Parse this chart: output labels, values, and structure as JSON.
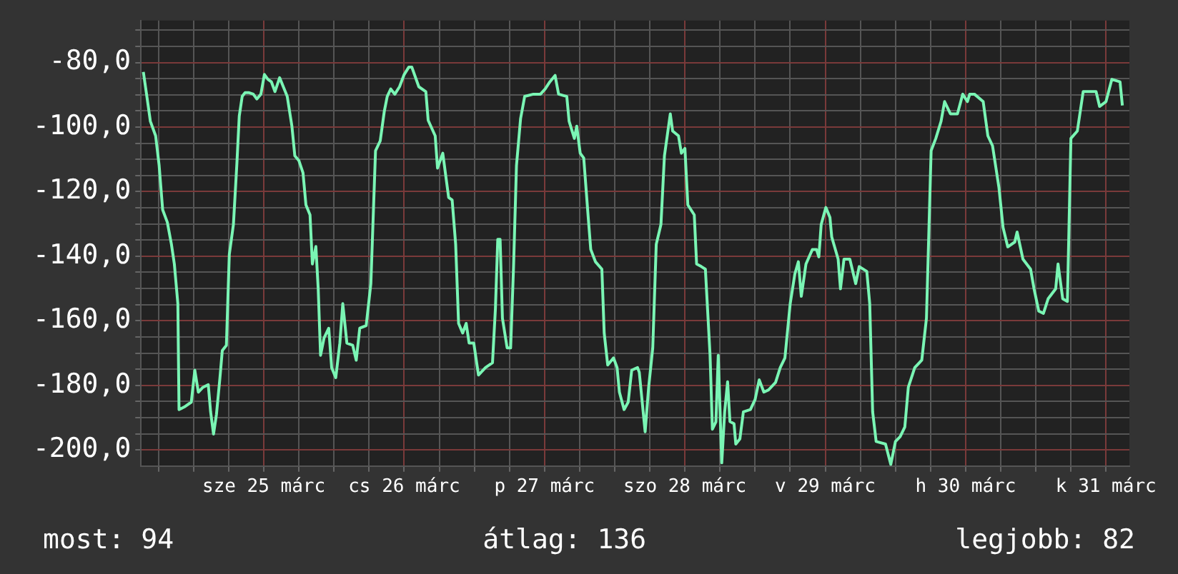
{
  "chart_data": {
    "type": "line",
    "x": [
      "--03-24T15:24",
      "--03-24T16:00",
      "--03-24T16:36",
      "--03-24T17:30",
      "--03-24T18:06",
      "--03-24T18:42",
      "--03-24T19:30",
      "--03-24T20:12",
      "--03-24T20:42",
      "--03-24T21:18",
      "--03-24T21:30",
      "--03-24T22:24",
      "--03-24T23:36",
      "--03-25T00:12",
      "--03-25T00:48",
      "--03-25T01:36",
      "--03-25T02:30",
      "--03-25T02:54",
      "--03-25T03:24",
      "--03-25T03:54",
      "--03-25T04:30",
      "--03-25T04:54",
      "--03-25T05:36",
      "--03-25T06:06",
      "--03-25T06:48",
      "--03-25T07:24",
      "--03-25T07:48",
      "--03-25T08:18",
      "--03-25T08:48",
      "--03-25T09:24",
      "--03-25T10:12",
      "--03-25T10:48",
      "--03-25T11:30",
      "--03-25T12:06",
      "--03-25T12:42",
      "--03-25T13:18",
      "--03-25T13:54",
      "--03-25T14:42",
      "--03-25T16:00",
      "--03-25T16:48",
      "--03-25T17:18",
      "--03-25T18:00",
      "--03-25T18:42",
      "--03-25T19:12",
      "--03-25T19:54",
      "--03-25T20:18",
      "--03-25T20:54",
      "--03-25T21:18",
      "--03-25T21:42",
      "--03-25T22:18",
      "--03-25T23:06",
      "--03-25T23:36",
      "--03-26T00:18",
      "--03-26T01:00",
      "--03-26T01:30",
      "--03-26T02:12",
      "--03-26T03:12",
      "--03-26T03:48",
      "--03-26T04:24",
      "--03-26T05:30",
      "--03-26T06:18",
      "--03-26T07:06",
      "--03-26T07:54",
      "--03-26T08:36",
      "--03-26T09:06",
      "--03-26T09:42",
      "--03-26T10:24",
      "--03-26T11:12",
      "--03-26T12:00",
      "--03-26T12:48",
      "--03-26T13:18",
      "--03-26T14:30",
      "--03-26T15:42",
      "--03-26T16:06",
      "--03-26T17:18",
      "--03-26T17:42",
      "--03-26T18:36",
      "--03-26T19:36",
      "--03-26T20:12",
      "--03-26T20:48",
      "--03-26T21:18",
      "--03-26T22:00",
      "--03-26T22:36",
      "--03-26T23:06",
      "--03-26T23:54",
      "--03-27T00:42",
      "--03-27T01:54",
      "--03-27T03:06",
      "--03-27T03:36",
      "--03-27T04:00",
      "--03-27T04:24",
      "--03-27T04:48",
      "--03-27T05:36",
      "--03-27T06:12",
      "--03-27T06:42",
      "--03-27T07:12",
      "--03-27T07:54",
      "--03-27T08:36",
      "--03-27T10:06",
      "--03-27T11:18",
      "--03-27T12:06",
      "--03-27T12:54",
      "--03-27T13:48",
      "--03-27T14:24",
      "--03-27T15:48",
      "--03-27T16:12",
      "--03-27T17:06",
      "--03-27T17:30",
      "--03-27T18:06",
      "--03-27T18:42",
      "--03-27T19:30",
      "--03-27T19:54",
      "--03-27T20:42",
      "--03-27T21:48",
      "--03-27T22:12",
      "--03-27T22:48",
      "--03-27T23:48",
      "--03-28T00:24",
      "--03-28T00:48",
      "--03-28T01:36",
      "--03-28T02:18",
      "--03-28T02:54",
      "--03-28T03:54",
      "--03-28T04:12",
      "--03-28T05:12",
      "--03-28T05:48",
      "--03-28T06:30",
      "--03-28T07:06",
      "--03-28T07:54",
      "--03-28T08:30",
      "--03-28T09:30",
      "--03-28T09:54",
      "--03-28T10:54",
      "--03-28T11:24",
      "--03-28T12:00",
      "--03-28T12:30",
      "--03-28T13:36",
      "--03-28T14:00",
      "--03-28T14:48",
      "--03-28T15:30",
      "--03-28T16:18",
      "--03-28T16:42",
      "--03-28T17:18",
      "--03-28T17:42",
      "--03-28T18:18",
      "--03-28T18:48",
      "--03-28T19:18",
      "--03-28T19:42",
      "--03-28T20:24",
      "--03-28T20:42",
      "--03-28T21:24",
      "--03-28T22:00",
      "--03-28T23:12",
      "--03-29T00:00",
      "--03-29T00:42",
      "--03-29T01:30",
      "--03-29T02:18",
      "--03-29T03:30",
      "--03-29T04:18",
      "--03-29T05:06",
      "--03-29T06:00",
      "--03-29T06:48",
      "--03-29T07:24",
      "--03-29T07:54",
      "--03-29T08:42",
      "--03-29T09:48",
      "--03-29T10:30",
      "--03-29T10:54",
      "--03-29T11:18",
      "--03-29T12:06",
      "--03-29T12:48",
      "--03-29T13:06",
      "--03-29T14:12",
      "--03-29T14:36",
      "--03-29T15:12",
      "--03-29T16:12",
      "--03-29T17:12",
      "--03-29T17:48",
      "--03-29T19:06",
      "--03-29T19:36",
      "--03-29T20:06",
      "--03-29T20:42",
      "--03-29T22:18",
      "--03-29T23:12",
      "--03-30T00:00",
      "--03-30T00:48",
      "--03-30T01:36",
      "--03-30T02:12",
      "--03-30T03:18",
      "--03-30T04:30",
      "--03-30T05:18",
      "--03-30T06:06",
      "--03-30T06:54",
      "--03-30T07:48",
      "--03-30T08:24",
      "--03-30T09:24",
      "--03-30T10:36",
      "--03-30T11:30",
      "--03-30T12:18",
      "--03-30T12:42",
      "--03-30T13:30",
      "--03-30T15:00",
      "--03-30T15:48",
      "--03-30T16:36",
      "--03-30T17:42",
      "--03-30T18:24",
      "--03-30T19:12",
      "--03-30T20:24",
      "--03-30T20:48",
      "--03-30T21:48",
      "--03-30T23:06",
      "--03-30T23:42",
      "--03-31T00:30",
      "--03-31T01:18",
      "--03-31T02:06",
      "--03-31T03:24",
      "--03-31T03:48",
      "--03-31T04:36",
      "--03-31T05:24",
      "--03-31T06:00",
      "--03-31T07:06",
      "--03-31T08:06",
      "--03-31T10:18",
      "--03-31T10:54",
      "--03-31T12:00",
      "--03-31T13:00",
      "--03-31T14:24",
      "--03-31T14:48"
    ],
    "series": [
      {
        "color": "#7af5b4",
        "values": [
          -82.9,
          -90.5,
          -98.2,
          -102.7,
          -111.9,
          -125.6,
          -129.5,
          -136.3,
          -142.4,
          -154.7,
          -187.5,
          -186.7,
          -185.2,
          -175.3,
          -182.1,
          -180.6,
          -179.8,
          -188.2,
          -195.1,
          -189.0,
          -177.6,
          -169.2,
          -167.6,
          -139.4,
          -130.2,
          -111.1,
          -96.6,
          -90.5,
          -89.3,
          -89.3,
          -89.8,
          -91.3,
          -89.8,
          -83.7,
          -85.2,
          -86.0,
          -89.0,
          -84.7,
          -90.5,
          -99.7,
          -108.9,
          -110.4,
          -114.2,
          -124.1,
          -127.2,
          -142.4,
          -137.0,
          -150.1,
          -170.7,
          -165.3,
          -162.3,
          -174.5,
          -177.6,
          -166.9,
          -154.7,
          -166.9,
          -167.6,
          -172.2,
          -162.3,
          -161.5,
          -148.5,
          -107.3,
          -104.3,
          -95.1,
          -90.5,
          -88.2,
          -89.8,
          -87.5,
          -83.7,
          -81.4,
          -81.4,
          -87.5,
          -89.0,
          -97.9,
          -102.7,
          -112.7,
          -108.1,
          -121.8,
          -122.6,
          -136.3,
          -160.8,
          -163.8,
          -160.8,
          -166.9,
          -166.9,
          -176.8,
          -174.5,
          -173.0,
          -156.2,
          -134.8,
          -134.8,
          -159.2,
          -168.4,
          -168.4,
          -143.2,
          -111.9,
          -97.4,
          -90.5,
          -89.8,
          -89.8,
          -88.2,
          -86.0,
          -84.0,
          -89.8,
          -90.5,
          -98.2,
          -103.5,
          -99.7,
          -108.1,
          -109.6,
          -128.7,
          -137.9,
          -141.7,
          -144.0,
          -163.8,
          -173.7,
          -171.5,
          -174.5,
          -182.1,
          -187.5,
          -185.2,
          -175.3,
          -174.5,
          -176.0,
          -194.4,
          -180.6,
          -168.4,
          -136.3,
          -130.2,
          -108.9,
          -95.9,
          -101.2,
          -102.7,
          -108.1,
          -106.6,
          -124.1,
          -127.2,
          -142.4,
          -143.2,
          -144.0,
          -170.7,
          -193.6,
          -191.3,
          -170.7,
          -204.0,
          -188.2,
          -178.9,
          -191.2,
          -191.9,
          -198.2,
          -196.6,
          -188.2,
          -187.5,
          -184.4,
          -178.3,
          -182.1,
          -181.4,
          -179.1,
          -174.5,
          -171.5,
          -154.7,
          -145.5,
          -141.7,
          -152.4,
          -142.4,
          -137.9,
          -137.9,
          -140.2,
          -130.2,
          -124.9,
          -128.0,
          -134.0,
          -140.9,
          -150.1,
          -140.9,
          -140.9,
          -148.5,
          -143.2,
          -144.7,
          -154.7,
          -188.2,
          -197.4,
          -198.2,
          -204.5,
          -197.4,
          -195.9,
          -192.9,
          -180.6,
          -174.5,
          -172.2,
          -159.2,
          -107.3,
          -103.5,
          -98.2,
          -92.1,
          -95.9,
          -95.9,
          -89.8,
          -92.1,
          -89.8,
          -89.8,
          -92.1,
          -102.7,
          -105.8,
          -118.8,
          -131.1,
          -137.1,
          -135.6,
          -132.5,
          -140.9,
          -144.0,
          -150.1,
          -157.0,
          -157.7,
          -153.2,
          -150.1,
          -142.4,
          -153.2,
          -154.0,
          -103.5,
          -101.2,
          -89.0,
          -89.0,
          -93.6,
          -92.1,
          -85.2,
          -86.0,
          -93.3
        ]
      }
    ],
    "xlim": [
      "--03-24T15:00",
      "--03-31T16:00"
    ],
    "xticks": [
      {
        "value": "--03-24T18:00",
        "label": null
      },
      {
        "value": "--03-25T00:00",
        "label": null
      },
      {
        "value": "--03-25T06:00",
        "label": null
      },
      {
        "value": "--03-25T12:00",
        "label": "sze 25 márc"
      },
      {
        "value": "--03-25T18:00",
        "label": null
      },
      {
        "value": "--03-26T00:00",
        "label": null
      },
      {
        "value": "--03-26T06:00",
        "label": null
      },
      {
        "value": "--03-26T12:00",
        "label": "cs 26 márc"
      },
      {
        "value": "--03-26T18:00",
        "label": null
      },
      {
        "value": "--03-27T00:00",
        "label": null
      },
      {
        "value": "--03-27T06:00",
        "label": null
      },
      {
        "value": "--03-27T12:00",
        "label": "p 27 márc"
      },
      {
        "value": "--03-27T18:00",
        "label": null
      },
      {
        "value": "--03-28T00:00",
        "label": null
      },
      {
        "value": "--03-28T06:00",
        "label": null
      },
      {
        "value": "--03-28T12:00",
        "label": "szo 28 márc"
      },
      {
        "value": "--03-28T18:00",
        "label": null
      },
      {
        "value": "--03-29T00:00",
        "label": null
      },
      {
        "value": "--03-29T06:00",
        "label": null
      },
      {
        "value": "--03-29T12:00",
        "label": "v 29 márc"
      },
      {
        "value": "--03-29T18:00",
        "label": null
      },
      {
        "value": "--03-30T00:00",
        "label": null
      },
      {
        "value": "--03-30T06:00",
        "label": null
      },
      {
        "value": "--03-30T12:00",
        "label": "h 30 márc"
      },
      {
        "value": "--03-30T18:00",
        "label": null
      },
      {
        "value": "--03-31T00:00",
        "label": null
      },
      {
        "value": "--03-31T06:00",
        "label": null
      },
      {
        "value": "--03-31T12:00",
        "label": "k 31 márc"
      }
    ],
    "ylim": [
      -205,
      -67
    ],
    "yticks": [
      {
        "value": -200,
        "label": "-200,0"
      },
      {
        "value": -195,
        "label": null
      },
      {
        "value": -190,
        "label": null
      },
      {
        "value": -185,
        "label": null
      },
      {
        "value": -180,
        "label": "-180,0"
      },
      {
        "value": -175,
        "label": null
      },
      {
        "value": -170,
        "label": null
      },
      {
        "value": -165,
        "label": null
      },
      {
        "value": -160,
        "label": "-160,0"
      },
      {
        "value": -155,
        "label": null
      },
      {
        "value": -150,
        "label": null
      },
      {
        "value": -145,
        "label": null
      },
      {
        "value": -140,
        "label": "-140,0"
      },
      {
        "value": -135,
        "label": null
      },
      {
        "value": -130,
        "label": null
      },
      {
        "value": -125,
        "label": null
      },
      {
        "value": -120,
        "label": "-120,0"
      },
      {
        "value": -115,
        "label": null
      },
      {
        "value": -110,
        "label": null
      },
      {
        "value": -105,
        "label": null
      },
      {
        "value": -100,
        "label": "-100,0"
      },
      {
        "value": -95,
        "label": null
      },
      {
        "value": -90,
        "label": null
      },
      {
        "value": -85,
        "label": null
      },
      {
        "value": -80,
        "label": "-80,0"
      },
      {
        "value": -75,
        "label": null
      },
      {
        "value": -70,
        "label": null
      }
    ],
    "grid": true,
    "legend": false,
    "annotations": [
      "most: 94",
      "átlag: 136",
      "legjobb: 82"
    ]
  }
}
